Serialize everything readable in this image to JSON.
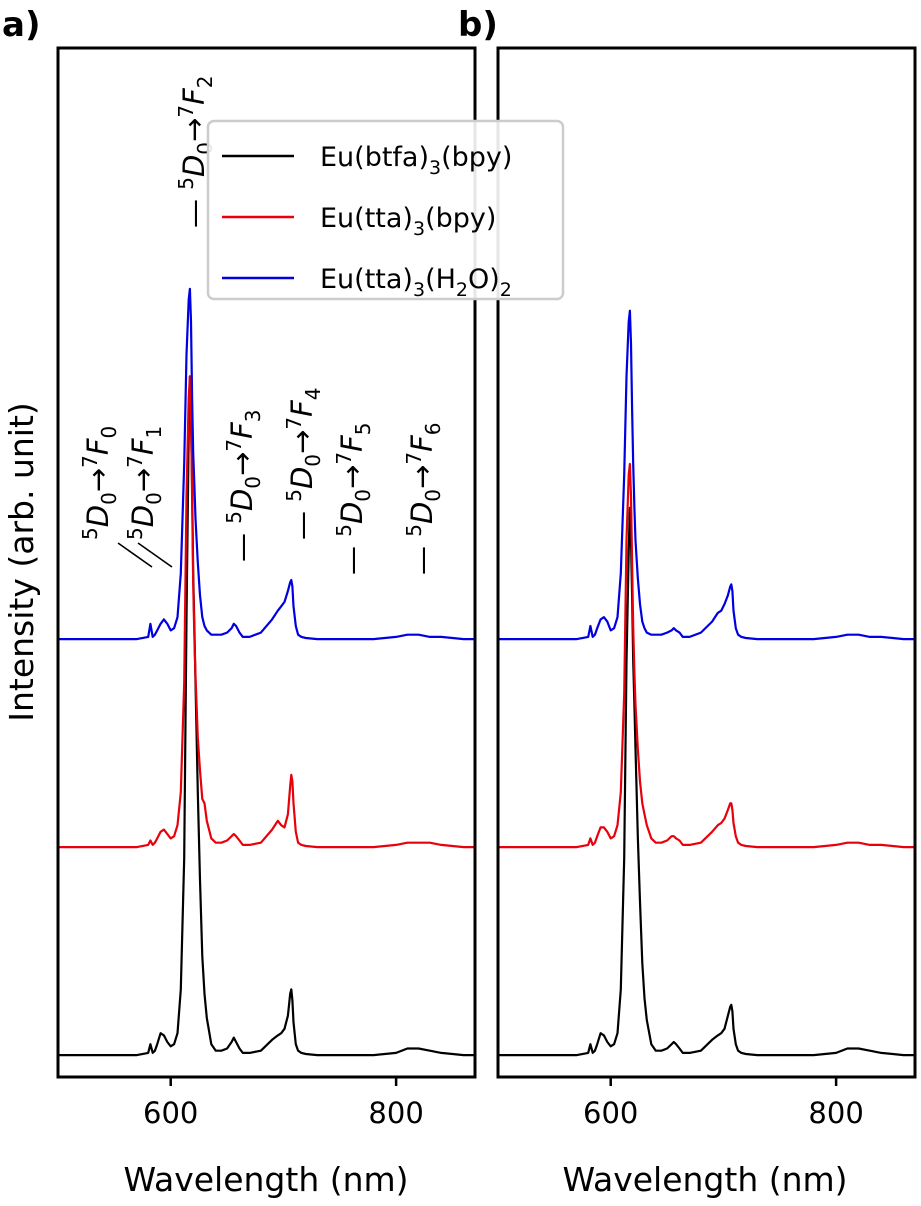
{
  "figure": {
    "panel_a_label": "a)",
    "panel_b_label": "b)",
    "ylabel": "Intensity (arb. unit)",
    "xlabel": "Wavelength (nm)"
  },
  "legend": {
    "entries": [
      {
        "pre": "Eu(btfa)",
        "sub": "3",
        "post": "(bpy)",
        "sub2": "",
        "post2": "",
        "color": "#000000"
      },
      {
        "pre": "Eu(tta)",
        "sub": "3",
        "post": "(bpy)",
        "sub2": "",
        "post2": "",
        "color": "#e8000b"
      },
      {
        "pre": "Eu(tta)",
        "sub": "3",
        "post": "(H",
        "sub2": "2",
        "post2": "O)2",
        "color": "#0000e0"
      }
    ]
  },
  "transitions": [
    {
      "up": "5",
      "D": "D",
      "D_sub": "0",
      "arrow": "→",
      "up2": "7",
      "F": "F",
      "F_sub": "0"
    },
    {
      "up": "5",
      "D": "D",
      "D_sub": "0",
      "arrow": "→",
      "up2": "7",
      "F": "F",
      "F_sub": "1"
    },
    {
      "up": "5",
      "D": "D",
      "D_sub": "0",
      "arrow": "→",
      "up2": "7",
      "F": "F",
      "F_sub": "2"
    },
    {
      "up": "5",
      "D": "D",
      "D_sub": "0",
      "arrow": "→",
      "up2": "7",
      "F": "F",
      "F_sub": "3"
    },
    {
      "up": "5",
      "D": "D",
      "D_sub": "0",
      "arrow": "→",
      "up2": "7",
      "F": "F",
      "F_sub": "4"
    },
    {
      "up": "5",
      "D": "D",
      "D_sub": "0",
      "arrow": "→",
      "up2": "7",
      "F": "F",
      "F_sub": "5"
    },
    {
      "up": "5",
      "D": "D",
      "D_sub": "0",
      "arrow": "→",
      "up2": "7",
      "F": "F",
      "F_sub": "6"
    }
  ],
  "chart_data": [
    {
      "type": "line",
      "panel": "a)",
      "xlabel": "Wavelength (nm)",
      "ylabel": "Intensity (arb. unit)",
      "xlim": [
        500,
        870
      ],
      "ylim": [
        0,
        4.7
      ],
      "xticks": [
        600,
        800
      ],
      "yticks": [],
      "grid": false,
      "legend_position": "top-center",
      "series": [
        {
          "name": "Eu(btfa)3(bpy)",
          "color": "#000000",
          "offset": 0.1,
          "x": [
            500,
            570,
            580,
            582,
            584,
            586,
            588,
            591,
            594,
            597,
            600,
            603,
            606,
            609,
            612,
            614,
            616,
            617,
            618,
            619,
            620,
            621,
            622,
            624,
            626,
            628,
            630,
            632,
            636,
            640,
            645,
            650,
            654,
            656,
            658,
            661,
            664,
            670,
            680,
            690,
            695,
            698,
            701,
            704,
            706,
            707,
            708,
            709,
            711,
            713,
            716,
            720,
            730,
            750,
            780,
            800,
            810,
            820,
            830,
            840,
            860,
            870
          ],
          "y": [
            0,
            0,
            0.01,
            0.05,
            0.01,
            0.02,
            0.05,
            0.1,
            0.09,
            0.06,
            0.04,
            0.05,
            0.1,
            0.3,
            0.9,
            2.0,
            2.85,
            3.1,
            2.9,
            2.6,
            2.2,
            1.95,
            1.7,
            1.2,
            0.8,
            0.45,
            0.28,
            0.17,
            0.05,
            0.02,
            0.02,
            0.03,
            0.06,
            0.08,
            0.06,
            0.03,
            0.01,
            0.01,
            0.02,
            0.07,
            0.09,
            0.1,
            0.12,
            0.18,
            0.28,
            0.3,
            0.25,
            0.15,
            0.05,
            0.02,
            0.01,
            0.005,
            0,
            0,
            0,
            0.01,
            0.03,
            0.03,
            0.02,
            0.01,
            0,
            0
          ]
        },
        {
          "name": "Eu(tta)3(bpy)",
          "color": "#e8000b",
          "offset": 1.05,
          "x": [
            500,
            570,
            580,
            582,
            584,
            586,
            588,
            591,
            594,
            597,
            600,
            603,
            606,
            609,
            612,
            614,
            616,
            617,
            618,
            619,
            620,
            621,
            622,
            624,
            626,
            628,
            630,
            632,
            636,
            640,
            645,
            650,
            654,
            656,
            658,
            661,
            664,
            670,
            680,
            690,
            695,
            698,
            701,
            704,
            706,
            707,
            708,
            709,
            711,
            713,
            716,
            720,
            730,
            750,
            780,
            800,
            810,
            820,
            830,
            840,
            860,
            870
          ],
          "y": [
            0,
            0,
            0.01,
            0.03,
            0.01,
            0.02,
            0.04,
            0.07,
            0.08,
            0.06,
            0.04,
            0.05,
            0.1,
            0.25,
            0.75,
            1.6,
            2.05,
            2.15,
            2.0,
            1.6,
            1.2,
            0.95,
            0.78,
            0.5,
            0.35,
            0.22,
            0.2,
            0.12,
            0.04,
            0.02,
            0.02,
            0.03,
            0.05,
            0.06,
            0.05,
            0.03,
            0.01,
            0.01,
            0.02,
            0.08,
            0.12,
            0.1,
            0.09,
            0.15,
            0.28,
            0.33,
            0.3,
            0.2,
            0.07,
            0.02,
            0.01,
            0.005,
            0,
            0,
            0,
            0.01,
            0.02,
            0.02,
            0.02,
            0.01,
            0,
            0
          ]
        },
        {
          "name": "Eu(tta)3(H2O)2",
          "color": "#0000e0",
          "offset": 2.0,
          "x": [
            500,
            570,
            580,
            582,
            584,
            586,
            588,
            591,
            594,
            597,
            600,
            603,
            606,
            609,
            612,
            614,
            616,
            617,
            618,
            619,
            620,
            621,
            622,
            624,
            626,
            628,
            630,
            632,
            636,
            640,
            645,
            650,
            654,
            656,
            658,
            661,
            664,
            670,
            680,
            690,
            695,
            698,
            701,
            704,
            706,
            707,
            708,
            709,
            711,
            713,
            716,
            720,
            730,
            750,
            780,
            800,
            810,
            820,
            830,
            840,
            860,
            870
          ],
          "y": [
            0,
            0,
            0.01,
            0.07,
            0.01,
            0.02,
            0.04,
            0.07,
            0.09,
            0.07,
            0.04,
            0.05,
            0.1,
            0.3,
            0.8,
            1.3,
            1.55,
            1.6,
            1.45,
            1.1,
            0.85,
            0.7,
            0.55,
            0.35,
            0.2,
            0.1,
            0.06,
            0.04,
            0.02,
            0.02,
            0.02,
            0.03,
            0.05,
            0.07,
            0.06,
            0.03,
            0.01,
            0.01,
            0.03,
            0.09,
            0.13,
            0.15,
            0.17,
            0.22,
            0.26,
            0.27,
            0.24,
            0.15,
            0.06,
            0.02,
            0.01,
            0.005,
            0,
            0,
            0,
            0.01,
            0.02,
            0.02,
            0.01,
            0.01,
            0,
            0
          ]
        }
      ]
    },
    {
      "type": "line",
      "panel": "b)",
      "xlabel": "Wavelength (nm)",
      "xlim": [
        500,
        870
      ],
      "ylim": [
        0,
        4.7
      ],
      "xticks": [
        600,
        800
      ],
      "yticks": [],
      "grid": false,
      "series": [
        {
          "name": "Eu(btfa)3(bpy)",
          "color": "#000000",
          "offset": 0.1,
          "x": [
            500,
            570,
            580,
            582,
            584,
            586,
            588,
            591,
            594,
            597,
            600,
            603,
            606,
            609,
            612,
            614,
            616,
            617,
            618,
            619,
            620,
            621,
            622,
            624,
            626,
            628,
            630,
            632,
            636,
            640,
            645,
            650,
            654,
            656,
            658,
            661,
            664,
            670,
            680,
            690,
            695,
            698,
            701,
            704,
            706,
            707,
            708,
            709,
            711,
            713,
            716,
            720,
            730,
            750,
            780,
            800,
            810,
            820,
            830,
            840,
            860,
            870
          ],
          "y": [
            0,
            0,
            0.01,
            0.05,
            0.01,
            0.02,
            0.05,
            0.1,
            0.09,
            0.06,
            0.04,
            0.05,
            0.1,
            0.3,
            0.9,
            1.8,
            2.3,
            2.5,
            2.35,
            2.1,
            1.8,
            1.6,
            1.4,
            1.0,
            0.7,
            0.42,
            0.26,
            0.16,
            0.05,
            0.02,
            0.02,
            0.03,
            0.05,
            0.06,
            0.05,
            0.03,
            0.01,
            0.01,
            0.02,
            0.07,
            0.09,
            0.1,
            0.12,
            0.18,
            0.22,
            0.23,
            0.2,
            0.12,
            0.05,
            0.02,
            0.01,
            0.005,
            0,
            0,
            0,
            0.01,
            0.03,
            0.03,
            0.02,
            0.01,
            0,
            0
          ]
        },
        {
          "name": "Eu(tta)3(bpy)",
          "color": "#e8000b",
          "offset": 1.05,
          "x": [
            500,
            570,
            580,
            582,
            584,
            586,
            588,
            591,
            594,
            597,
            600,
            603,
            606,
            609,
            612,
            614,
            616,
            617,
            618,
            619,
            620,
            621,
            622,
            624,
            626,
            628,
            630,
            632,
            636,
            640,
            645,
            650,
            654,
            656,
            658,
            661,
            664,
            670,
            680,
            690,
            695,
            698,
            701,
            704,
            706,
            707,
            708,
            709,
            711,
            713,
            716,
            720,
            730,
            750,
            780,
            800,
            810,
            820,
            830,
            840,
            860,
            870
          ],
          "y": [
            0,
            0,
            0.01,
            0.04,
            0.01,
            0.02,
            0.05,
            0.09,
            0.09,
            0.07,
            0.04,
            0.05,
            0.1,
            0.25,
            0.7,
            1.4,
            1.7,
            1.75,
            1.6,
            1.3,
            1.0,
            0.8,
            0.65,
            0.45,
            0.3,
            0.2,
            0.15,
            0.1,
            0.04,
            0.02,
            0.02,
            0.03,
            0.05,
            0.05,
            0.04,
            0.03,
            0.01,
            0.01,
            0.02,
            0.07,
            0.1,
            0.11,
            0.13,
            0.17,
            0.2,
            0.2,
            0.17,
            0.11,
            0.05,
            0.02,
            0.01,
            0.005,
            0,
            0,
            0,
            0.01,
            0.02,
            0.02,
            0.01,
            0.01,
            0,
            0
          ]
        },
        {
          "name": "Eu(tta)3(H2O)2",
          "color": "#0000e0",
          "offset": 2.0,
          "x": [
            500,
            570,
            580,
            582,
            584,
            586,
            588,
            591,
            594,
            597,
            600,
            603,
            606,
            609,
            612,
            614,
            616,
            617,
            618,
            619,
            620,
            621,
            622,
            624,
            626,
            628,
            630,
            632,
            636,
            640,
            645,
            650,
            654,
            656,
            658,
            661,
            664,
            670,
            680,
            690,
            695,
            698,
            701,
            704,
            706,
            707,
            708,
            709,
            711,
            713,
            716,
            720,
            730,
            750,
            780,
            800,
            810,
            820,
            830,
            840,
            860,
            870
          ],
          "y": [
            0,
            0,
            0.01,
            0.06,
            0.01,
            0.02,
            0.05,
            0.09,
            0.1,
            0.08,
            0.04,
            0.05,
            0.1,
            0.3,
            0.75,
            1.2,
            1.45,
            1.5,
            1.35,
            1.05,
            0.8,
            0.6,
            0.45,
            0.28,
            0.16,
            0.08,
            0.05,
            0.03,
            0.02,
            0.02,
            0.02,
            0.03,
            0.04,
            0.05,
            0.04,
            0.03,
            0.01,
            0.01,
            0.03,
            0.08,
            0.12,
            0.13,
            0.16,
            0.2,
            0.24,
            0.25,
            0.22,
            0.13,
            0.05,
            0.02,
            0.01,
            0.005,
            0,
            0,
            0,
            0.01,
            0.02,
            0.02,
            0.01,
            0.01,
            0,
            0
          ]
        }
      ]
    }
  ]
}
